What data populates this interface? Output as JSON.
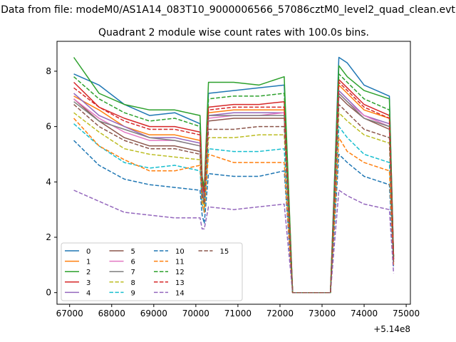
{
  "chart_data": {
    "type": "line",
    "suptitle": "Data from file: modeM0/AS1A14_083T10_9000006566_57086cztM0_level2_quad_clean.evt",
    "title": "Quadrant 2 module wise count rates with 100.0s bins.",
    "xlabel": "",
    "ylabel": "",
    "x_offset_label": "+5.14e8",
    "xlim": [
      66700,
      75100
    ],
    "ylim": [
      -0.42,
      9.08
    ],
    "x_ticks": [
      67000,
      68000,
      69000,
      70000,
      71000,
      72000,
      73000,
      74000,
      75000
    ],
    "x_tick_labels": [
      "67000",
      "68000",
      "69000",
      "70000",
      "71000",
      "72000",
      "73000",
      "74000",
      "75000"
    ],
    "y_ticks": [
      0,
      2,
      4,
      6,
      8
    ],
    "y_tick_labels": [
      "0",
      "2",
      "4",
      "6",
      "8"
    ],
    "grid": false,
    "legend_position": "lower-left",
    "x": [
      67100,
      67700,
      68300,
      68900,
      69500,
      70100,
      70150,
      70200,
      70300,
      70900,
      71500,
      72100,
      72300,
      73200,
      73400,
      73600,
      74000,
      74600,
      74700
    ],
    "series": [
      {
        "name": "0",
        "style": "solid",
        "color": "#1f77b4",
        "values": [
          7.9,
          7.5,
          6.8,
          6.4,
          6.5,
          6.1,
          4.1,
          3.6,
          7.2,
          7.3,
          7.4,
          7.5,
          0,
          0,
          8.5,
          8.3,
          7.5,
          7.1,
          1.3
        ]
      },
      {
        "name": "1",
        "style": "solid",
        "color": "#ff7f0e",
        "values": [
          7.1,
          6.6,
          6.0,
          5.7,
          5.7,
          5.5,
          3.9,
          3.5,
          6.5,
          6.6,
          6.6,
          6.6,
          0,
          0,
          7.5,
          7.2,
          6.6,
          6.3,
          1.3
        ]
      },
      {
        "name": "2",
        "style": "solid",
        "color": "#2ca02c",
        "values": [
          8.5,
          7.2,
          6.8,
          6.6,
          6.6,
          6.4,
          4.2,
          3.8,
          7.6,
          7.6,
          7.5,
          7.8,
          0,
          0,
          8.2,
          7.8,
          7.3,
          7.0,
          1.3
        ]
      },
      {
        "name": "3",
        "style": "solid",
        "color": "#d62728",
        "values": [
          7.6,
          6.7,
          6.3,
          6.0,
          6.0,
          5.8,
          4.0,
          3.6,
          6.7,
          6.8,
          6.8,
          6.9,
          0,
          0,
          7.7,
          7.4,
          6.8,
          6.4,
          1.3
        ]
      },
      {
        "name": "4",
        "style": "solid",
        "color": "#9467bd",
        "values": [
          7.2,
          6.4,
          6.0,
          5.6,
          5.6,
          5.4,
          3.8,
          3.4,
          6.4,
          6.5,
          6.5,
          6.5,
          0,
          0,
          7.3,
          7.0,
          6.4,
          6.1,
          1.2
        ]
      },
      {
        "name": "5",
        "style": "solid",
        "color": "#8c564b",
        "values": [
          7.0,
          6.2,
          5.6,
          5.3,
          5.3,
          5.1,
          3.6,
          3.3,
          6.2,
          6.3,
          6.3,
          6.3,
          0,
          0,
          7.1,
          6.8,
          6.3,
          5.9,
          1.2
        ]
      },
      {
        "name": "6",
        "style": "solid",
        "color": "#e377c2",
        "values": [
          7.0,
          6.3,
          5.8,
          5.5,
          5.5,
          5.3,
          3.7,
          3.4,
          6.3,
          6.4,
          6.4,
          6.5,
          0,
          0,
          7.2,
          6.9,
          6.4,
          6.0,
          1.2
        ]
      },
      {
        "name": "7",
        "style": "solid",
        "color": "#7f7f7f",
        "values": [
          6.9,
          6.2,
          5.9,
          5.6,
          5.5,
          5.3,
          3.7,
          3.4,
          6.4,
          6.4,
          6.4,
          6.4,
          0,
          0,
          7.2,
          6.9,
          6.3,
          6.0,
          1.2
        ]
      },
      {
        "name": "8",
        "style": "dashed",
        "color": "#bcbd22",
        "values": [
          6.5,
          5.8,
          5.2,
          5.0,
          4.9,
          4.8,
          3.4,
          3.1,
          5.6,
          5.6,
          5.7,
          5.7,
          0,
          0,
          6.5,
          6.2,
          5.7,
          5.4,
          1.1
        ]
      },
      {
        "name": "9",
        "style": "dashed",
        "color": "#17becf",
        "values": [
          6.1,
          5.3,
          4.7,
          4.5,
          4.6,
          4.4,
          3.2,
          2.9,
          5.2,
          5.1,
          5.1,
          5.2,
          0,
          0,
          6.0,
          5.6,
          5.0,
          4.7,
          1.0
        ]
      },
      {
        "name": "10",
        "style": "dashed",
        "color": "#1f77b4",
        "values": [
          5.5,
          4.6,
          4.1,
          3.9,
          3.8,
          3.7,
          2.8,
          2.5,
          4.3,
          4.2,
          4.2,
          4.4,
          0,
          0,
          5.0,
          4.7,
          4.2,
          3.9,
          0.9
        ]
      },
      {
        "name": "11",
        "style": "dashed",
        "color": "#ff7f0e",
        "values": [
          6.3,
          5.3,
          4.8,
          4.4,
          4.4,
          4.6,
          3.2,
          2.9,
          5.0,
          4.7,
          4.7,
          4.7,
          0,
          0,
          5.6,
          5.1,
          4.7,
          4.4,
          1.0
        ]
      },
      {
        "name": "12",
        "style": "dashed",
        "color": "#2ca02c",
        "values": [
          7.8,
          7.0,
          6.5,
          6.2,
          6.3,
          6.0,
          4.1,
          3.7,
          7.0,
          7.1,
          7.1,
          7.2,
          0,
          0,
          7.9,
          7.6,
          7.0,
          6.6,
          1.3
        ]
      },
      {
        "name": "13",
        "style": "dashed",
        "color": "#d62728",
        "values": [
          7.4,
          6.7,
          6.2,
          5.9,
          5.9,
          5.7,
          3.9,
          3.6,
          6.6,
          6.7,
          6.7,
          6.7,
          0,
          0,
          7.6,
          7.3,
          6.7,
          6.3,
          1.2
        ]
      },
      {
        "name": "14",
        "style": "dashed",
        "color": "#9467bd",
        "values": [
          3.7,
          3.3,
          2.9,
          2.8,
          2.7,
          2.7,
          2.3,
          2.3,
          3.1,
          3.0,
          3.1,
          3.2,
          0,
          0,
          3.7,
          3.5,
          3.2,
          3.0,
          0.7
        ]
      },
      {
        "name": "15",
        "style": "dashed",
        "color": "#8c564b",
        "values": [
          6.8,
          6.0,
          5.5,
          5.2,
          5.2,
          5.0,
          3.5,
          3.2,
          5.9,
          5.9,
          6.0,
          6.0,
          0,
          0,
          6.8,
          6.5,
          5.9,
          5.6,
          1.1
        ]
      }
    ]
  }
}
